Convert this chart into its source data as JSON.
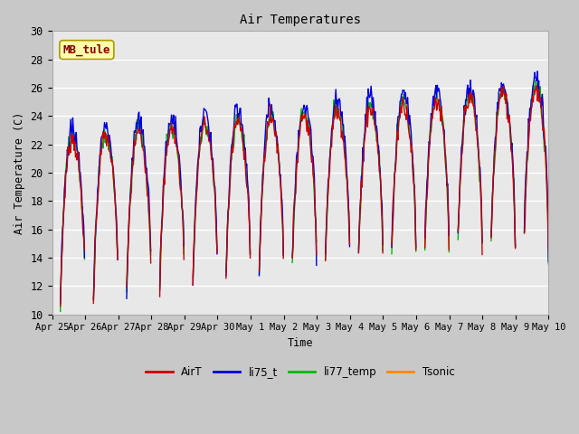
{
  "title": "Air Temperatures",
  "ylabel": "Air Temperature (C)",
  "xlabel": "Time",
  "ylim": [
    10,
    30
  ],
  "fig_facecolor": "#c8c8c8",
  "ax_facecolor": "#e8e8e8",
  "grid_color": "#ffffff",
  "series": {
    "AirT": {
      "color": "#cc0000",
      "lw": 1.0,
      "zorder": 4
    },
    "li75_t": {
      "color": "#0000dd",
      "lw": 1.0,
      "zorder": 3
    },
    "li77_temp": {
      "color": "#00bb00",
      "lw": 1.0,
      "zorder": 2
    },
    "Tsonic": {
      "color": "#ff8800",
      "lw": 1.0,
      "zorder": 1
    }
  },
  "annotation": {
    "text": "MB_tule",
    "fontsize": 9,
    "color": "#880000",
    "bg": "#ffffaa",
    "border": "#aa9900"
  },
  "xtick_labels": [
    "Apr 25",
    "Apr 26",
    "Apr 27",
    "Apr 28",
    "Apr 29",
    "Apr 30",
    "May 1",
    "May 2",
    "May 3",
    "May 4",
    "May 5",
    "May 6",
    "May 7",
    "May 8",
    "May 9",
    "May 10"
  ],
  "ytick_labels": [
    10,
    12,
    14,
    16,
    18,
    20,
    22,
    24,
    26,
    28,
    30
  ],
  "n_per_day": 48,
  "n_days": 15,
  "seed": 7
}
